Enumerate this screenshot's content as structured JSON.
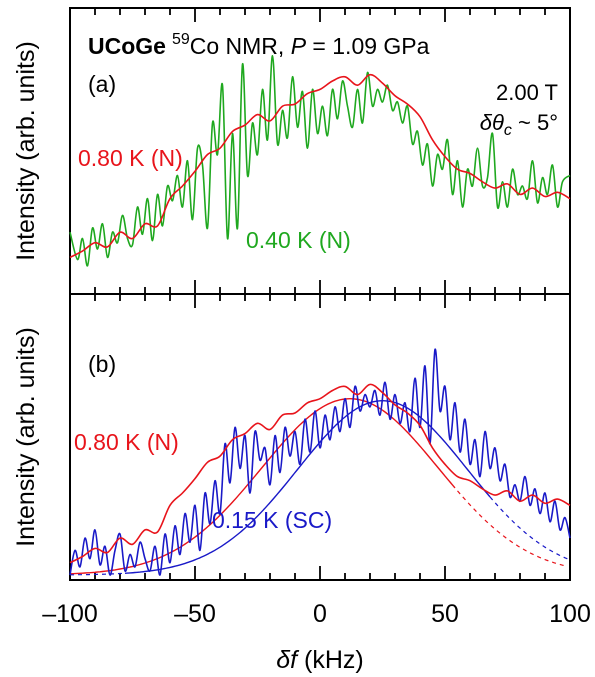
{
  "chart_data": {
    "type": "line",
    "xlabel_italic": "δf",
    "xlabel_unit": " (kHz)",
    "xlim": [
      -100,
      100
    ],
    "xticks": [
      -100,
      -50,
      0,
      50,
      100
    ],
    "xtick_labels": [
      "–100",
      "–50",
      "0",
      "50",
      "100"
    ],
    "ylabel": "Intensity (arb. units)",
    "grid": false,
    "colors": {
      "red": "#e8141b",
      "green": "#1fa81f",
      "blue": "#1919c8"
    },
    "panels": [
      {
        "id": "a",
        "panel_label": "(a)",
        "title": {
          "bold": "UCoGe",
          "sup": "59",
          "rest": "Co NMR, ",
          "italic": "P",
          "tail": " = 1.09 GPa"
        },
        "field": "2.00 T",
        "angle": {
          "symbol": "δθ",
          "sub": "c",
          "rest": " ~ 5°"
        },
        "ylim": [
          0,
          1
        ],
        "series": [
          {
            "name": "0.80 K (N)",
            "color": "red",
            "x": [
              -100,
              -95,
              -90,
              -85,
              -80,
              -75,
              -70,
              -65,
              -60,
              -55,
              -50,
              -45,
              -40,
              -35,
              -30,
              -25,
              -20,
              -15,
              -10,
              -5,
              0,
              5,
              10,
              15,
              20,
              25,
              30,
              35,
              40,
              45,
              50,
              55,
              60,
              65,
              70,
              75,
              80,
              85,
              90,
              95,
              100
            ],
            "y": [
              0.06,
              0.09,
              0.13,
              0.11,
              0.18,
              0.15,
              0.22,
              0.21,
              0.34,
              0.4,
              0.47,
              0.55,
              0.58,
              0.66,
              0.69,
              0.74,
              0.71,
              0.78,
              0.79,
              0.84,
              0.86,
              0.9,
              0.92,
              0.88,
              0.93,
              0.89,
              0.83,
              0.79,
              0.73,
              0.62,
              0.54,
              0.48,
              0.46,
              0.42,
              0.39,
              0.41,
              0.36,
              0.39,
              0.35,
              0.37,
              0.34
            ]
          },
          {
            "name": "0.40 K (N)",
            "color": "green",
            "x": [
              -100,
              -97,
              -95,
              -93,
              -91,
              -89,
              -87,
              -85,
              -83,
              -81,
              -79,
              -77,
              -75,
              -73,
              -71,
              -69,
              -67,
              -65,
              -63,
              -61,
              -59,
              -57,
              -55,
              -53,
              -51,
              -49,
              -47,
              -45,
              -43,
              -41,
              -39,
              -37,
              -35,
              -33,
              -31,
              -29,
              -27,
              -25,
              -23,
              -21,
              -19,
              -17,
              -15,
              -13,
              -11,
              -9,
              -7,
              -5,
              -3,
              -1,
              1,
              3,
              5,
              7,
              9,
              11,
              13,
              15,
              17,
              19,
              21,
              23,
              25,
              27,
              29,
              31,
              33,
              35,
              37,
              39,
              41,
              43,
              45,
              47,
              49,
              51,
              53,
              55,
              57,
              59,
              61,
              63,
              65,
              67,
              69,
              71,
              73,
              75,
              77,
              79,
              81,
              83,
              85,
              87,
              89,
              91,
              93,
              95,
              97,
              100
            ],
            "y": [
              0.18,
              0.05,
              0.15,
              0.02,
              0.2,
              0.1,
              0.22,
              0.06,
              0.18,
              0.13,
              0.26,
              0.15,
              0.12,
              0.3,
              0.17,
              0.34,
              0.14,
              0.36,
              0.21,
              0.4,
              0.33,
              0.45,
              0.3,
              0.52,
              0.24,
              0.58,
              0.5,
              0.2,
              0.7,
              0.55,
              0.88,
              0.15,
              0.65,
              0.2,
              0.98,
              0.45,
              0.7,
              0.55,
              0.86,
              0.62,
              1.02,
              0.6,
              0.76,
              0.63,
              0.92,
              0.68,
              0.85,
              0.58,
              0.86,
              0.65,
              0.78,
              0.64,
              0.86,
              0.72,
              0.9,
              0.78,
              0.68,
              0.86,
              0.7,
              0.94,
              0.78,
              0.86,
              0.8,
              0.88,
              0.76,
              0.8,
              0.7,
              0.78,
              0.6,
              0.66,
              0.5,
              0.6,
              0.4,
              0.55,
              0.48,
              0.62,
              0.36,
              0.52,
              0.3,
              0.48,
              0.4,
              0.58,
              0.4,
              0.44,
              0.65,
              0.3,
              0.42,
              0.3,
              0.48,
              0.36,
              0.4,
              0.34,
              0.52,
              0.32,
              0.44,
              0.36,
              0.5,
              0.3,
              0.42,
              0.45
            ]
          }
        ],
        "annotations": [
          {
            "text": "0.80 K (N)",
            "color": "red"
          },
          {
            "text": "0.40 K (N)",
            "color": "green"
          }
        ]
      },
      {
        "id": "b",
        "panel_label": "(b)",
        "ylim": [
          0,
          1
        ],
        "series": [
          {
            "name": "0.80 K (N)",
            "color": "red",
            "x": [
              -100,
              -95,
              -90,
              -85,
              -80,
              -75,
              -70,
              -65,
              -60,
              -55,
              -50,
              -45,
              -40,
              -35,
              -30,
              -25,
              -20,
              -15,
              -10,
              -5,
              0,
              5,
              10,
              15,
              20,
              25,
              30,
              35,
              40,
              45,
              50,
              55,
              60,
              65,
              70,
              75,
              80,
              85,
              90,
              95,
              100
            ],
            "y": [
              0.06,
              0.09,
              0.13,
              0.11,
              0.18,
              0.15,
              0.22,
              0.21,
              0.34,
              0.4,
              0.47,
              0.55,
              0.58,
              0.66,
              0.69,
              0.74,
              0.71,
              0.78,
              0.79,
              0.84,
              0.86,
              0.9,
              0.92,
              0.88,
              0.93,
              0.89,
              0.83,
              0.79,
              0.73,
              0.62,
              0.54,
              0.48,
              0.46,
              0.42,
              0.39,
              0.41,
              0.36,
              0.39,
              0.35,
              0.37,
              0.34
            ]
          },
          {
            "name": "0.15 K (SC)",
            "color": "blue",
            "x": [
              -100,
              -98,
              -96,
              -94,
              -92,
              -90,
              -88,
              -86,
              -84,
              -82,
              -80,
              -78,
              -76,
              -74,
              -72,
              -70,
              -68,
              -66,
              -64,
              -62,
              -60,
              -58,
              -56,
              -54,
              -52,
              -50,
              -48,
              -46,
              -44,
              -42,
              -40,
              -38,
              -36,
              -34,
              -32,
              -30,
              -28,
              -26,
              -24,
              -22,
              -20,
              -18,
              -16,
              -14,
              -12,
              -10,
              -8,
              -6,
              -4,
              -2,
              0,
              2,
              4,
              6,
              8,
              10,
              12,
              14,
              16,
              18,
              20,
              22,
              24,
              26,
              28,
              30,
              32,
              34,
              36,
              38,
              40,
              42,
              44,
              46,
              48,
              50,
              52,
              54,
              56,
              58,
              60,
              62,
              64,
              66,
              68,
              70,
              72,
              74,
              76,
              78,
              80,
              82,
              84,
              86,
              88,
              90,
              92,
              94,
              96,
              98,
              100
            ],
            "y": [
              0.0,
              0.12,
              0.04,
              0.18,
              0.08,
              0.22,
              0.05,
              0.14,
              0.0,
              0.12,
              0.2,
              0.02,
              0.1,
              0.04,
              0.16,
              0.08,
              0.02,
              0.14,
              0.0,
              0.2,
              0.06,
              0.24,
              0.1,
              0.3,
              0.16,
              0.34,
              0.12,
              0.4,
              0.25,
              0.46,
              0.3,
              0.64,
              0.45,
              0.72,
              0.52,
              0.68,
              0.4,
              0.7,
              0.56,
              0.62,
              0.44,
              0.68,
              0.5,
              0.72,
              0.58,
              0.7,
              0.54,
              0.76,
              0.6,
              0.8,
              0.62,
              0.78,
              0.66,
              0.82,
              0.7,
              0.86,
              0.72,
              0.92,
              0.8,
              0.88,
              0.82,
              0.9,
              0.78,
              0.94,
              0.76,
              0.88,
              0.74,
              0.84,
              0.7,
              0.96,
              0.72,
              1.02,
              0.64,
              1.1,
              0.8,
              0.92,
              0.66,
              0.84,
              0.6,
              0.76,
              0.54,
              0.66,
              0.48,
              0.7,
              0.52,
              0.62,
              0.46,
              0.54,
              0.38,
              0.44,
              0.36,
              0.48,
              0.34,
              0.42,
              0.3,
              0.4,
              0.26,
              0.36,
              0.22,
              0.28,
              0.18
            ]
          }
        ],
        "fits": [
          {
            "color": "red",
            "peak_x": 12,
            "width": 50,
            "amp": 0.86,
            "base": 0.0,
            "solid_range": [
              -100,
              55
            ],
            "dashed_range": [
              55,
              100
            ]
          },
          {
            "color": "blue",
            "peak_x": 25,
            "width": 48,
            "amp": 0.85,
            "base": 0.0,
            "solid_range": [
              -78,
              68
            ],
            "dashed_range_left": [
              -100,
              -78
            ],
            "dashed_range_right": [
              68,
              100
            ]
          }
        ],
        "annotations": [
          {
            "text": "0.80 K (N)",
            "color": "red"
          },
          {
            "text": "0.15 K (SC)",
            "color": "blue"
          }
        ]
      }
    ]
  }
}
